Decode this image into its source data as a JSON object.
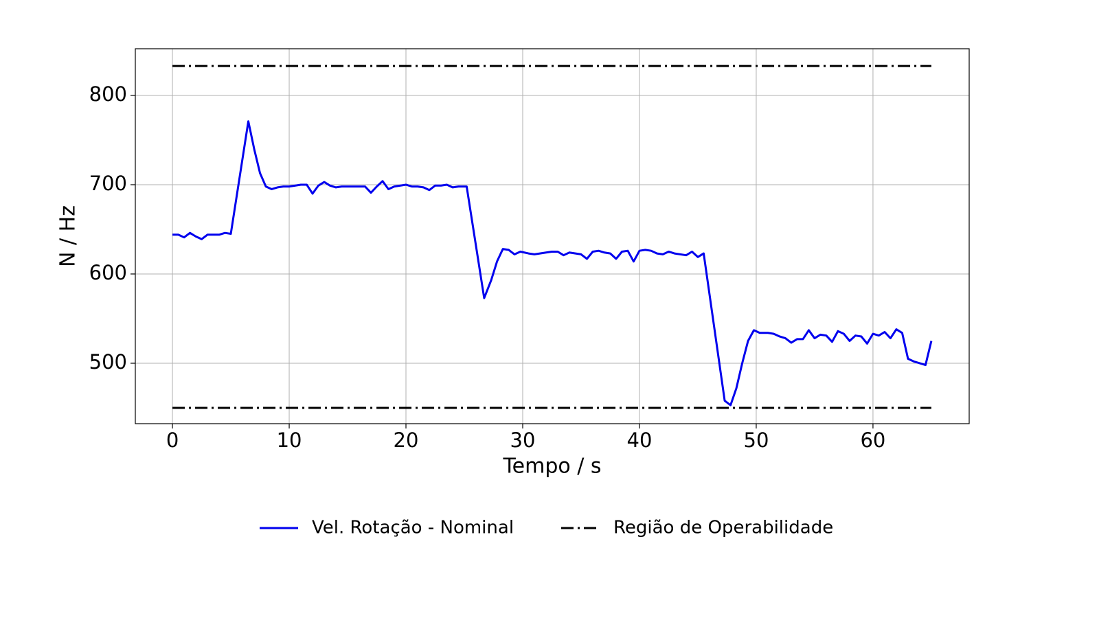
{
  "chart_data": {
    "type": "line",
    "xlabel": "Tempo / s",
    "ylabel": "N / Hz",
    "xlim": [
      -3.18,
      68.24
    ],
    "ylim": [
      432.3,
      852.3
    ],
    "xticks": [
      0,
      10,
      20,
      30,
      40,
      50,
      60
    ],
    "yticks": [
      500,
      600,
      700,
      800
    ],
    "grid": true,
    "legend": "bottom",
    "series": [
      {
        "name": "Vel. Rotação - Nominal",
        "color": "#0000ee",
        "style": "solid",
        "x": [
          0,
          0.5,
          1,
          1.5,
          2,
          2.5,
          3,
          3.5,
          4,
          4.5,
          5,
          6.5,
          7,
          7.5,
          8,
          8.5,
          9,
          9.5,
          10,
          11,
          11.5,
          12,
          12.5,
          13,
          13.5,
          14,
          14.5,
          15,
          16,
          16.5,
          17,
          17.5,
          18,
          18.5,
          19,
          20,
          20.5,
          21,
          21.5,
          22,
          22.5,
          23,
          23.5,
          24,
          24.5,
          25.2,
          26.7,
          27.3,
          27.8,
          28.3,
          28.8,
          29.3,
          29.8,
          30.5,
          31,
          32,
          32.5,
          33,
          33.5,
          34,
          35,
          35.5,
          36,
          36.5,
          37,
          37.5,
          38,
          38.5,
          39,
          39.5,
          40,
          40.5,
          41,
          41.5,
          42,
          42.5,
          43,
          44,
          44.5,
          45,
          45.5,
          47.3,
          47.8,
          48.3,
          48.8,
          49.3,
          49.8,
          50.3,
          51,
          51.5,
          52,
          52.5,
          53,
          53.5,
          54,
          54.5,
          55,
          55.5,
          56,
          56.5,
          57,
          57.5,
          58,
          58.5,
          59,
          59.5,
          60,
          60.5,
          61,
          61.5,
          62,
          62.5,
          63,
          63.5,
          64,
          64.5,
          65
        ],
        "values": [
          644,
          644,
          641,
          646,
          642,
          639,
          644,
          644,
          644,
          646,
          645,
          771,
          740,
          713,
          698,
          695,
          697,
          698,
          698,
          700,
          700,
          690,
          699,
          703,
          699,
          697,
          698,
          698,
          698,
          698,
          691,
          698,
          704,
          695,
          698,
          700,
          698,
          698,
          697,
          694,
          699,
          699,
          700,
          697,
          698,
          698,
          573,
          593,
          614,
          628,
          627,
          622,
          625,
          623,
          622,
          624,
          625,
          625,
          621,
          624,
          622,
          617,
          625,
          626,
          624,
          623,
          617,
          625,
          626,
          614,
          626,
          627,
          626,
          623,
          622,
          625,
          623,
          621,
          625,
          619,
          623,
          458,
          453,
          472,
          500,
          525,
          537,
          534,
          534,
          533,
          530,
          528,
          523,
          527,
          527,
          537,
          528,
          532,
          531,
          524,
          536,
          533,
          525,
          531,
          530,
          522,
          533,
          531,
          535,
          528,
          538,
          534,
          505,
          502,
          500,
          498,
          525
        ]
      },
      {
        "name": "Região de Operabilidade",
        "color": "#000000",
        "style": "dashdot",
        "x": [
          0,
          65,
          null,
          0,
          65
        ],
        "values": [
          833,
          833,
          null,
          450,
          450
        ]
      }
    ]
  }
}
